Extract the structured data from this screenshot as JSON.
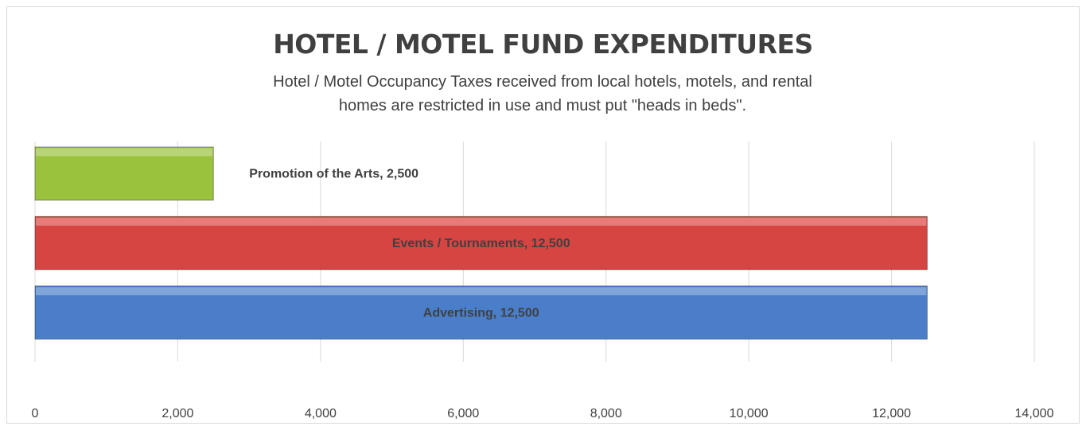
{
  "chart_data": {
    "type": "hbar",
    "title": "HOTEL / MOTEL FUND EXPENDITURES",
    "subtitle": "Hotel / Motel Occupancy Taxes received from local hotels, motels, and rental homes are restricted in use and must put \"heads in beds\".",
    "categories": [
      "Advertising",
      "Events / Tournaments",
      "Promotion of the Arts"
    ],
    "values": [
      12500,
      12500,
      2500
    ],
    "value_labels": [
      "Advertising, 12,500",
      "Events / Tournaments, 12,500",
      "Promotion of the Arts, 2,500"
    ],
    "colors": [
      "#4a7ec8",
      "#d64541",
      "#9bc23c"
    ],
    "xlim": [
      0,
      14000
    ],
    "xticks": [
      0,
      {
        "value": 2000,
        "label": "2,000"
      },
      {
        "value": 4000,
        "label": "4,000"
      },
      {
        "value": 6000,
        "label": "6,000"
      },
      {
        "value": 8000,
        "label": "8,000"
      },
      {
        "value": 10000,
        "label": "10,000"
      },
      {
        "value": 12000,
        "label": "12,000"
      },
      {
        "value": 14000,
        "label": "14,000"
      }
    ],
    "grid": true
  }
}
